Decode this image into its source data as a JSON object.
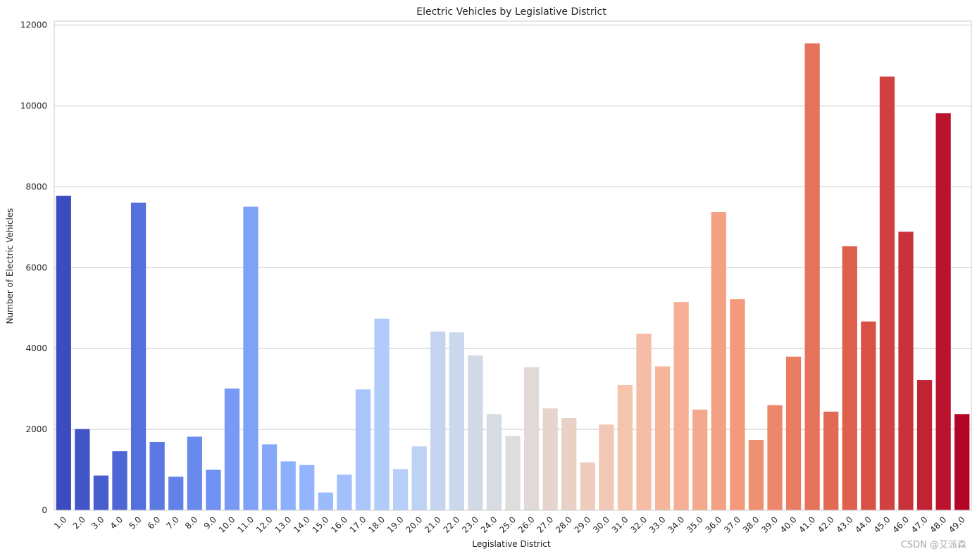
{
  "chart_data": {
    "type": "bar",
    "title": "Electric Vehicles by Legislative District",
    "xlabel": "Legislative District",
    "ylabel": "Number of Electric Vehicles",
    "ylim": [
      0,
      12100
    ],
    "yticks": [
      0,
      2000,
      4000,
      6000,
      8000,
      10000,
      12000
    ],
    "grid": true,
    "categories": [
      "1.0",
      "2.0",
      "3.0",
      "4.0",
      "5.0",
      "6.0",
      "7.0",
      "8.0",
      "9.0",
      "10.0",
      "11.0",
      "12.0",
      "13.0",
      "14.0",
      "15.0",
      "16.0",
      "17.0",
      "18.0",
      "19.0",
      "20.0",
      "21.0",
      "22.0",
      "23.0",
      "24.0",
      "25.0",
      "26.0",
      "27.0",
      "28.0",
      "29.0",
      "30.0",
      "31.0",
      "32.0",
      "33.0",
      "34.0",
      "35.0",
      "36.0",
      "37.0",
      "38.0",
      "39.0",
      "40.0",
      "41.0",
      "42.0",
      "43.0",
      "44.0",
      "45.0",
      "46.0",
      "47.0",
      "48.0",
      "49.0"
    ],
    "values": [
      7780,
      2010,
      860,
      1460,
      7610,
      1690,
      830,
      1820,
      1000,
      3010,
      7510,
      1630,
      1210,
      1120,
      440,
      880,
      2990,
      4740,
      1020,
      1580,
      4420,
      4400,
      3830,
      2380,
      1840,
      3540,
      2520,
      2280,
      1180,
      2120,
      3100,
      4370,
      3560,
      5150,
      2490,
      7380,
      5220,
      1740,
      2600,
      3800,
      11550,
      2440,
      6530,
      4670,
      10730,
      6890,
      3220,
      9820,
      2380
    ],
    "palette": "coolwarm",
    "colors": {
      "axis": "#cccccc",
      "grid": "#cccccc",
      "text": "#262626"
    }
  },
  "watermark": "CSDN @艾派森"
}
